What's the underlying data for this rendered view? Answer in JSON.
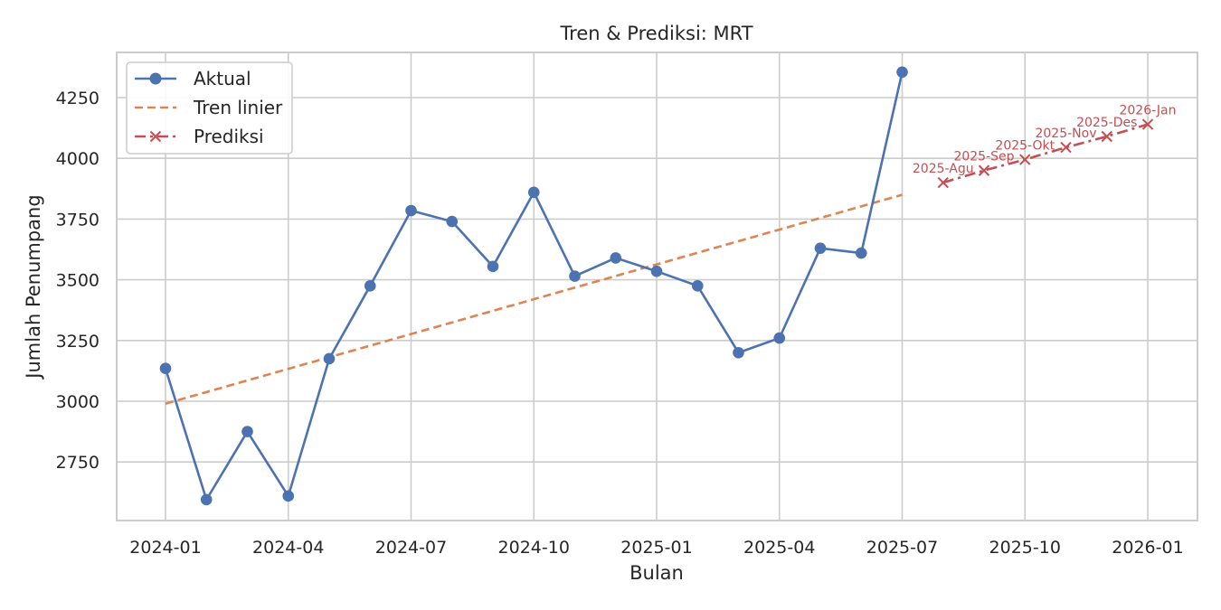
{
  "chart_data": {
    "type": "line",
    "title": "Tren & Prediksi: MRT",
    "xlabel": "Bulan",
    "ylabel": "Jumlah Penumpang",
    "x_ticks": [
      "2024-01",
      "2024-04",
      "2024-07",
      "2024-10",
      "2025-01",
      "2025-04",
      "2025-07",
      "2025-10",
      "2026-01"
    ],
    "y_ticks": [
      2750,
      3000,
      3250,
      3500,
      3750,
      4000,
      4250
    ],
    "ylim": [
      2520,
      4440
    ],
    "grid": true,
    "legend_position": "top-left",
    "colors": {
      "actual": "#4c72b0",
      "trend": "#dd8452",
      "prediction": "#c44e52"
    },
    "series": [
      {
        "name": "Aktual",
        "style": "solid-marker-circle",
        "x": [
          "2024-01",
          "2024-02",
          "2024-03",
          "2024-04",
          "2024-05",
          "2024-06",
          "2024-07",
          "2024-08",
          "2024-09",
          "2024-10",
          "2024-11",
          "2024-12",
          "2025-01",
          "2025-02",
          "2025-03",
          "2025-04",
          "2025-05",
          "2025-06",
          "2025-07"
        ],
        "values": [
          3135,
          2595,
          2875,
          2610,
          3175,
          3475,
          3785,
          3740,
          3555,
          3860,
          3515,
          3590,
          3535,
          3475,
          3200,
          3260,
          3630,
          3610,
          4355
        ]
      },
      {
        "name": "Tren linier",
        "style": "dashed",
        "x": [
          "2024-01",
          "2025-07"
        ],
        "values": [
          2990,
          3850
        ]
      },
      {
        "name": "Prediksi",
        "style": "dashdot-marker-x",
        "x": [
          "2025-08",
          "2025-09",
          "2025-10",
          "2025-11",
          "2025-12",
          "2026-01"
        ],
        "values": [
          3900,
          3950,
          3995,
          4045,
          4090,
          4140
        ],
        "point_labels": [
          "2025-Agu",
          "2025-Sep",
          "2025-Okt",
          "2025-Nov",
          "2025-Des",
          "2026-Jan"
        ]
      }
    ]
  }
}
